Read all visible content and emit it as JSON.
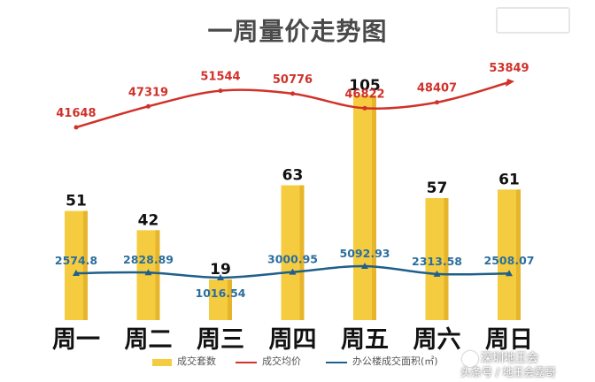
{
  "chart_data": {
    "type": "bar",
    "title": "一周量价走势图",
    "categories": [
      "周一",
      "周二",
      "周三",
      "周四",
      "周五",
      "周六",
      "周日"
    ],
    "series": [
      {
        "name": "成交套数",
        "type": "bar",
        "values": [
          51,
          42,
          19,
          63,
          105,
          57,
          61
        ],
        "color": "#f5cc3f"
      },
      {
        "name": "成交均价",
        "type": "line",
        "values": [
          41648,
          47319,
          51544,
          50776,
          46822,
          48407,
          53849
        ],
        "color": "#d0322a"
      },
      {
        "name": "办公楼成交面积(㎡)",
        "type": "line",
        "values": [
          2574.8,
          2828.89,
          1016.54,
          3000.95,
          5092.93,
          2313.58,
          2508.07
        ],
        "color": "#1f5f8b"
      }
    ],
    "value_labels": {
      "bars": [
        "51",
        "42",
        "19",
        "63",
        "105",
        "57",
        "61"
      ],
      "price": [
        "41648",
        "47319",
        "51544",
        "50776",
        "46822",
        "48407",
        "53849"
      ],
      "area": [
        "2574.8",
        "2828.89",
        "1016.54",
        "3000.95",
        "5092.93",
        "2313.58",
        "2508.07"
      ]
    },
    "legend_position": "bottom",
    "grid": false
  },
  "watermark": {
    "line1": "深圳地王会",
    "line2": "头条号 / 地王会嘉哥"
  }
}
